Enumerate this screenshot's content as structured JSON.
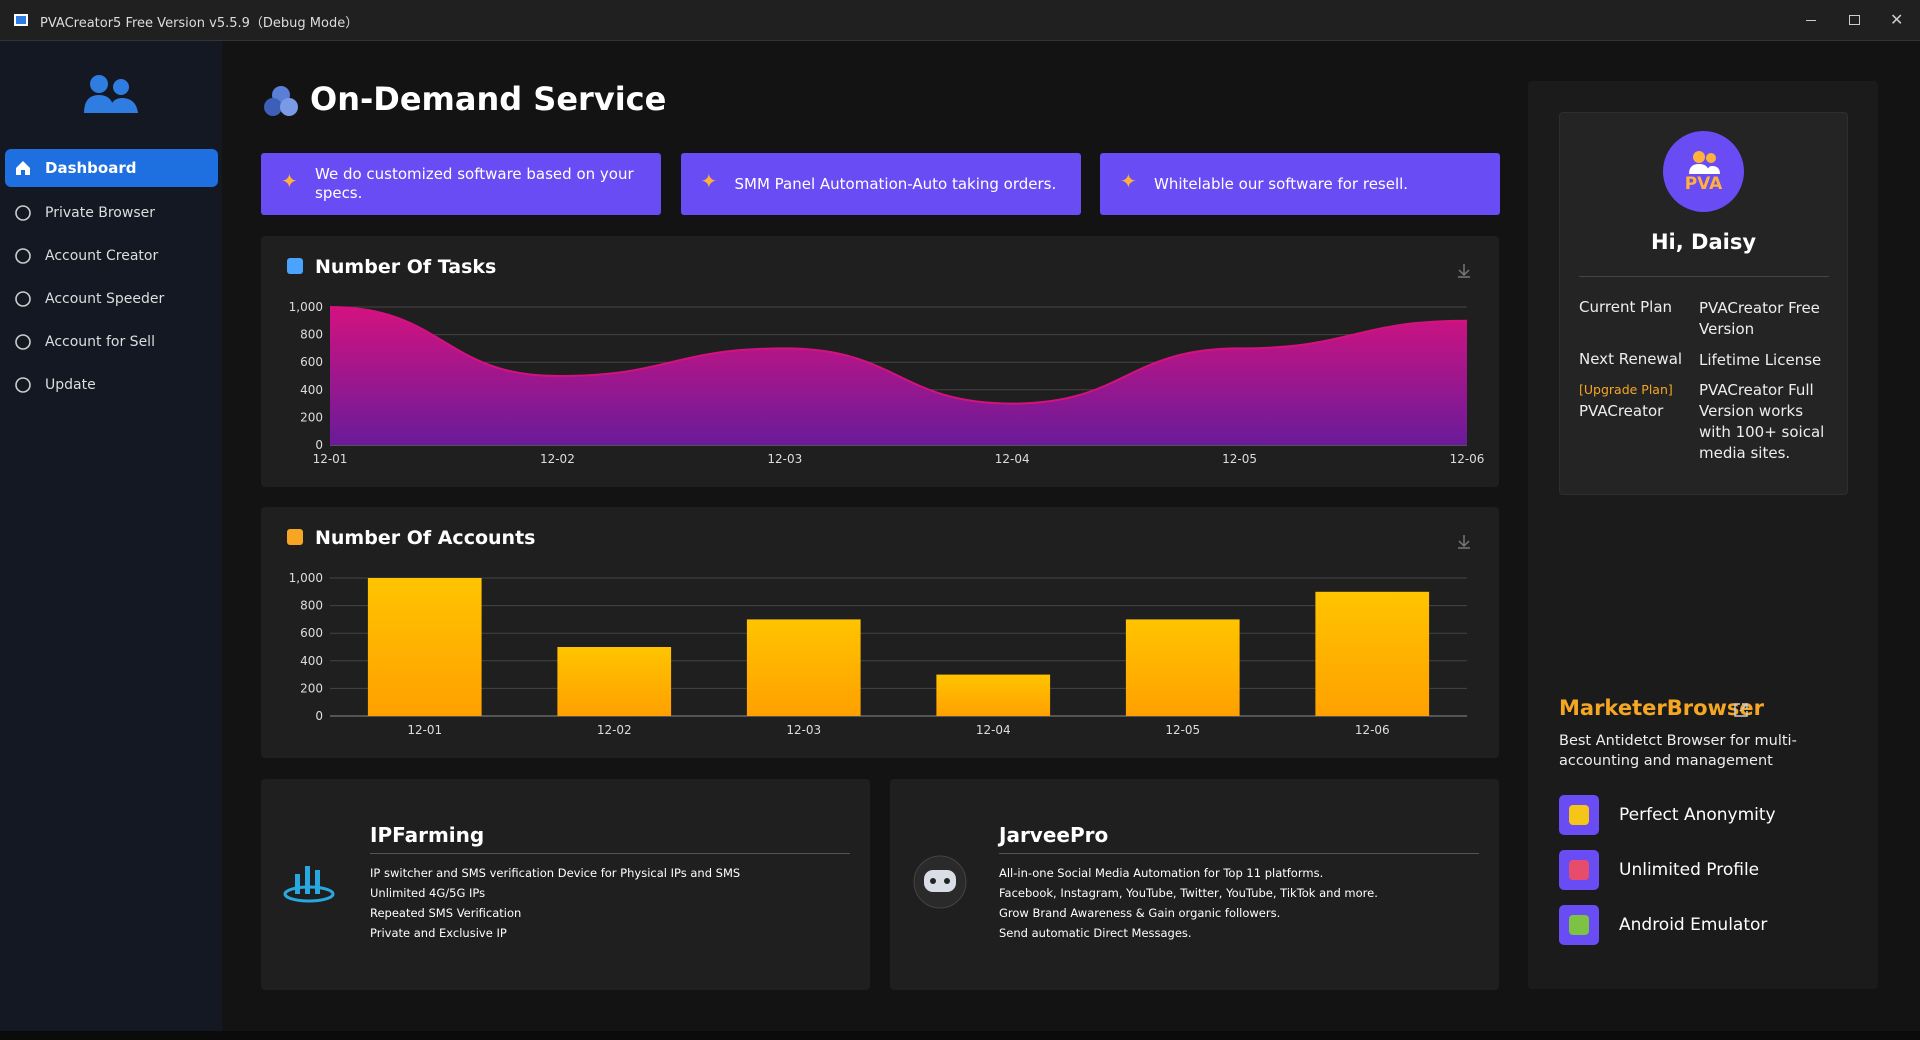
{
  "window": {
    "title": "PVACreator5 Free Version v5.5.9（Debug Mode）"
  },
  "sidebar": {
    "items": [
      "Dashboard",
      "Private Browser",
      "Account Creator",
      "Account Speeder",
      "Account for Sell",
      "Update"
    ]
  },
  "header": {
    "title": "On-Demand Service"
  },
  "banners": [
    "We do customized software based on your specs.",
    "SMM Panel Automation-Auto taking orders.",
    "Whitelable our software for resell."
  ],
  "charts": [
    {
      "type": "area",
      "title": "Number Of Tasks",
      "categories": [
        "12-01",
        "12-02",
        "12-03",
        "12-04",
        "12-05",
        "12-06"
      ],
      "values": [
        1000,
        500,
        700,
        300,
        700,
        900
      ],
      "color": "#d4127f",
      "ylim": [
        0,
        1000
      ],
      "yticks": [
        0,
        200,
        400,
        600,
        800,
        {
          "value": 1000,
          "label": "1,000"
        }
      ],
      "grid": true
    },
    {
      "type": "bar",
      "title": "Number Of Accounts",
      "categories": [
        "12-01",
        "12-02",
        "12-03",
        "12-04",
        "12-05",
        "12-06"
      ],
      "values": [
        1000,
        500,
        700,
        300,
        700,
        900
      ],
      "color": "#ffc400",
      "ylim": [
        0,
        1000
      ],
      "yticks": [
        0,
        200,
        400,
        600,
        800,
        {
          "value": 1000,
          "label": "1,000"
        }
      ],
      "grid": true
    }
  ],
  "products": [
    {
      "title": "IPFarming",
      "lines": [
        "IP switcher and SMS verification Device for Physical IPs and SMS",
        "Unlimited 4G/5G IPs",
        "Repeated SMS Verification",
        "Private and Exclusive IP"
      ]
    },
    {
      "title": "JarveePro",
      "lines": [
        "All-in-one Social Media Automation for Top 11 platforms.",
        "Facebook, Instagram, YouTube, Twitter, YouTube, TikTok and more.",
        "Grow Brand Awareness & Gain organic followers.",
        "Send automatic Direct Messages."
      ]
    }
  ],
  "profile": {
    "badge": "PVA",
    "greeting": "Hi, Daisy",
    "rows": [
      [
        "Current Plan",
        "PVACreator Free Version"
      ],
      [
        "Next Renewal",
        "Lifetime License"
      ]
    ],
    "upgrade": "[Upgrade Plan]",
    "upgrade_name": "PVACreator",
    "upgrade_text": "PVACreator Full Version works with 100+ soical media sites."
  },
  "promo": {
    "title": "MarketerBrowser",
    "subtitle": "Best Antidetct Browser for multi-accounting and management",
    "features": [
      "Perfect Anonymity",
      "Unlimited Profile",
      "Android Emulator"
    ]
  }
}
